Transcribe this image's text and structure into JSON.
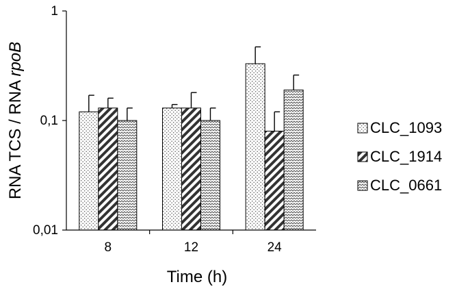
{
  "chart_data": {
    "type": "bar",
    "title": "",
    "xlabel": "Time (h)",
    "ylabel_main": "RNA TCS / RNA ",
    "ylabel_italic": "rpoB",
    "yscale": "log",
    "ylim": [
      0.01,
      1
    ],
    "yticks": [
      {
        "value": 1,
        "label": "1"
      },
      {
        "value": 0.1,
        "label": "0,1"
      },
      {
        "value": 0.01,
        "label": "0,01"
      }
    ],
    "categories": [
      "8",
      "12",
      "24"
    ],
    "series": [
      {
        "name": "CLC_1093",
        "pattern": "dots",
        "values": [
          0.12,
          0.13,
          0.33
        ],
        "errors": [
          0.05,
          0.01,
          0.14
        ]
      },
      {
        "name": "CLC_1914",
        "pattern": "diagonal-stripes",
        "values": [
          0.13,
          0.13,
          0.08
        ],
        "errors": [
          0.03,
          0.05,
          0.04
        ]
      },
      {
        "name": "CLC_0661",
        "pattern": "zigzag",
        "values": [
          0.1,
          0.1,
          0.19
        ],
        "errors": [
          0.03,
          0.03,
          0.07
        ]
      }
    ],
    "grid": false,
    "legend": "right"
  }
}
